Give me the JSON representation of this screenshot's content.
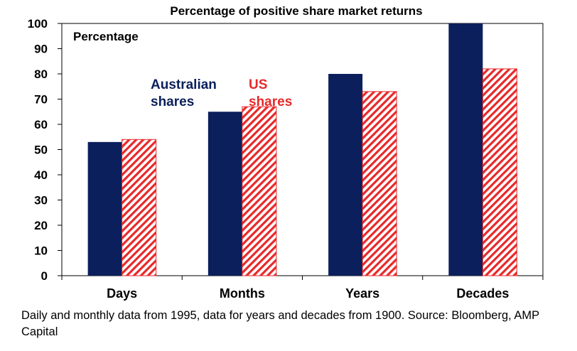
{
  "chart_data": {
    "type": "bar",
    "title": "Percentage of positive share market returns",
    "ylabel": "Percentage",
    "xlabel": "",
    "ylim": [
      0,
      100
    ],
    "yticks": [
      0,
      10,
      20,
      30,
      40,
      50,
      60,
      70,
      80,
      90,
      100
    ],
    "categories": [
      "Days",
      "Months",
      "Years",
      "Decades"
    ],
    "series": [
      {
        "name": "Australian shares",
        "label_lines": [
          "Australian",
          "shares"
        ],
        "color": "#0b1f5c",
        "pattern": "solid",
        "values": [
          53,
          65,
          80,
          100
        ]
      },
      {
        "name": "US shares",
        "label_lines": [
          "US",
          "shares"
        ],
        "color": "#e8292a",
        "pattern": "diagonal-hatch",
        "values": [
          54,
          67,
          73,
          82
        ]
      }
    ],
    "grid": false
  },
  "source_note": "Daily and monthly data from 1995, data for years and decades from 1900. Source: Bloomberg, AMP Capital"
}
